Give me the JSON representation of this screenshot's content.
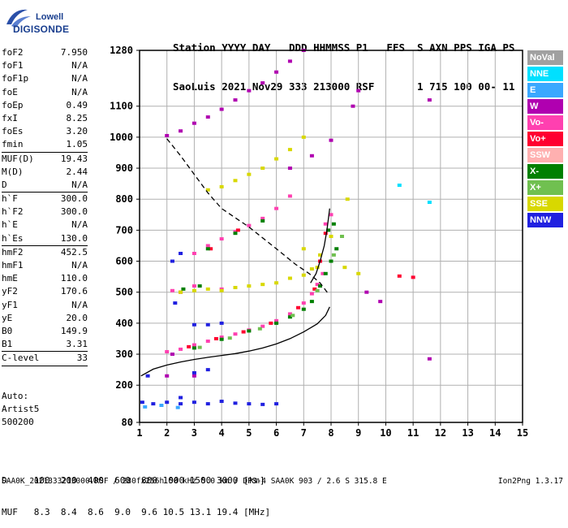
{
  "logo": {
    "line1": "Lowell",
    "line2": "DIGISONDE"
  },
  "header": {
    "line1": "Station YYYY DAY   DDD HHMMSS P1   FFS  S AXN PPS IGA PS",
    "line2": "SaoLuis 2021 Nov29 333 213000 RSF       1 715 100 00- 11"
  },
  "params": [
    {
      "label": "foF2",
      "value": "7.950"
    },
    {
      "label": "foF1",
      "value": "N/A"
    },
    {
      "label": "foF1p",
      "value": "N/A"
    },
    {
      "label": "foE",
      "value": "N/A"
    },
    {
      "label": "foEp",
      "value": "0.49"
    },
    {
      "label": "fxI",
      "value": "8.25"
    },
    {
      "label": "foEs",
      "value": "3.20"
    },
    {
      "label": "fmin",
      "value": "1.05"
    },
    {
      "sep": true
    },
    {
      "label": "MUF(D)",
      "value": "19.43"
    },
    {
      "label": "M(D)",
      "value": "2.44"
    },
    {
      "label": "D",
      "value": "N/A"
    },
    {
      "sep": true
    },
    {
      "label": "h`F",
      "value": "300.0"
    },
    {
      "label": "h`F2",
      "value": "300.0"
    },
    {
      "label": "h`E",
      "value": "N/A"
    },
    {
      "label": "h`Es",
      "value": "130.0"
    },
    {
      "sep": true
    },
    {
      "label": "hmF2",
      "value": "452.5"
    },
    {
      "label": "hmF1",
      "value": "N/A"
    },
    {
      "label": "hmE",
      "value": "110.0"
    },
    {
      "label": "yF2",
      "value": "170.6"
    },
    {
      "label": "yF1",
      "value": "N/A"
    },
    {
      "label": "yE",
      "value": "20.0"
    },
    {
      "label": "B0",
      "value": "149.9"
    },
    {
      "label": "B1",
      "value": "3.31"
    },
    {
      "sep": true
    },
    {
      "label": "C-level",
      "value": "33"
    },
    {
      "sep": true
    }
  ],
  "auto": {
    "line1": "Auto:",
    "line2": "Artist5",
    "line3": "500200"
  },
  "muf_table": {
    "line1": "D     100  200  400  600  800 1000 1500 3000 [km]",
    "line2": "MUF   8.3  8.4  8.6  9.0  9.6 10.5 13.1 19.4 [MHz]"
  },
  "footer": {
    "left": "SAA0K_2021333213000.RSF / 280fx256h 50 kHz 5.0 km / DPS-4 SAA0K 903 / 2.6 S 315.8 E",
    "right": "Ion2Png 1.3.17"
  },
  "legend": [
    {
      "label": "NoVal",
      "color": "#a0a0a0"
    },
    {
      "label": "NNE",
      "color": "#00e0ff"
    },
    {
      "label": "E",
      "color": "#3aa8ff"
    },
    {
      "label": "W",
      "color": "#b000b0"
    },
    {
      "label": "Vo-",
      "color": "#ff40b0"
    },
    {
      "label": "Vo+",
      "color": "#ff0030"
    },
    {
      "label": "SSW",
      "color": "#ffb0b0"
    },
    {
      "label": "X-",
      "color": "#008000"
    },
    {
      "label": "X+",
      "color": "#70c050"
    },
    {
      "label": "SSE",
      "color": "#d8d800"
    },
    {
      "label": "NNW",
      "color": "#2020e0"
    }
  ],
  "chart_data": {
    "type": "scatter",
    "xlim": [
      1,
      15
    ],
    "ylim": [
      80,
      1280
    ],
    "x_ticks": [
      1,
      2,
      3,
      4,
      5,
      6,
      7,
      8,
      9,
      10,
      11,
      12,
      13,
      14,
      15
    ],
    "y_ticks": [
      80,
      200,
      300,
      400,
      500,
      600,
      700,
      800,
      900,
      1000,
      1100,
      1280
    ],
    "grid": true,
    "legend_position": "right",
    "series": [
      {
        "name": "Vo-",
        "color": "#ff40b0",
        "points": [
          [
            2,
            308
          ],
          [
            2.5,
            316
          ],
          [
            3,
            330
          ],
          [
            3.5,
            342
          ],
          [
            4,
            355
          ],
          [
            4.5,
            365
          ],
          [
            5,
            378
          ],
          [
            5.5,
            390
          ],
          [
            6,
            408
          ],
          [
            6.5,
            430
          ],
          [
            7,
            465
          ],
          [
            7.3,
            495
          ],
          [
            7.5,
            525
          ],
          [
            7.7,
            560
          ],
          [
            3,
            625
          ],
          [
            3.5,
            650
          ],
          [
            4,
            672
          ],
          [
            4.5,
            695
          ],
          [
            5,
            715
          ],
          [
            5.5,
            738
          ],
          [
            6,
            770
          ],
          [
            6.5,
            810
          ],
          [
            7.8,
            720
          ],
          [
            8,
            750
          ],
          [
            2.2,
            505
          ],
          [
            3,
            520
          ],
          [
            4,
            510
          ]
        ]
      },
      {
        "name": "Vo+",
        "color": "#ff0030",
        "points": [
          [
            2.8,
            324
          ],
          [
            3.8,
            350
          ],
          [
            4.8,
            372
          ],
          [
            5.8,
            400
          ],
          [
            6.8,
            450
          ],
          [
            7.4,
            510
          ],
          [
            7.6,
            600
          ],
          [
            7.8,
            690
          ],
          [
            2.5,
            500
          ],
          [
            3.6,
            640
          ],
          [
            4.6,
            700
          ],
          [
            10.5,
            552
          ],
          [
            11,
            548
          ]
        ]
      },
      {
        "name": "X-",
        "color": "#008000",
        "points": [
          [
            3,
            320
          ],
          [
            4,
            348
          ],
          [
            5,
            375
          ],
          [
            6,
            400
          ],
          [
            6.5,
            420
          ],
          [
            7,
            445
          ],
          [
            7.3,
            470
          ],
          [
            7.6,
            520
          ],
          [
            7.8,
            560
          ],
          [
            8,
            600
          ],
          [
            8.2,
            640
          ],
          [
            3.5,
            640
          ],
          [
            4.5,
            690
          ],
          [
            5.5,
            730
          ],
          [
            2.6,
            510
          ],
          [
            3.2,
            520
          ],
          [
            7.9,
            700
          ],
          [
            8.1,
            720
          ]
        ]
      },
      {
        "name": "X+",
        "color": "#70c050",
        "points": [
          [
            3.2,
            322
          ],
          [
            4.3,
            352
          ],
          [
            5.4,
            382
          ],
          [
            6.6,
            425
          ],
          [
            7.5,
            505
          ],
          [
            8.1,
            620
          ],
          [
            8.4,
            680
          ]
        ]
      },
      {
        "name": "SSE",
        "color": "#d8d800",
        "points": [
          [
            2.5,
            500
          ],
          [
            3,
            505
          ],
          [
            3.5,
            510
          ],
          [
            4,
            505
          ],
          [
            4.5,
            515
          ],
          [
            5,
            520
          ],
          [
            5.5,
            525
          ],
          [
            6,
            530
          ],
          [
            6.5,
            545
          ],
          [
            7,
            555
          ],
          [
            7.3,
            575
          ],
          [
            7.6,
            620
          ],
          [
            8,
            680
          ],
          [
            8.6,
            800
          ],
          [
            3.5,
            830
          ],
          [
            4,
            840
          ],
          [
            4.5,
            860
          ],
          [
            5,
            880
          ],
          [
            5.5,
            900
          ],
          [
            6,
            930
          ],
          [
            6.5,
            960
          ],
          [
            7,
            1000
          ],
          [
            7,
            640
          ],
          [
            7.5,
            580
          ],
          [
            8.5,
            580
          ],
          [
            9,
            560
          ]
        ]
      },
      {
        "name": "W",
        "color": "#b000b0",
        "points": [
          [
            2.2,
            300
          ],
          [
            3,
            230
          ],
          [
            2,
            230
          ],
          [
            2,
            1005
          ],
          [
            2.5,
            1020
          ],
          [
            3,
            1045
          ],
          [
            3.5,
            1065
          ],
          [
            4,
            1090
          ],
          [
            4.5,
            1120
          ],
          [
            5,
            1150
          ],
          [
            5.5,
            1175
          ],
          [
            6,
            1210
          ],
          [
            6.5,
            1245
          ],
          [
            7,
            1280
          ],
          [
            11.6,
            1120
          ],
          [
            8.8,
            1100
          ],
          [
            9,
            1150
          ],
          [
            6.5,
            900
          ],
          [
            7.3,
            940
          ],
          [
            8,
            990
          ],
          [
            11.6,
            285
          ],
          [
            9.3,
            500
          ],
          [
            9.8,
            470
          ]
        ]
      },
      {
        "name": "NNW",
        "color": "#2020e0",
        "points": [
          [
            1.1,
            145
          ],
          [
            1.5,
            140
          ],
          [
            2,
            145
          ],
          [
            2.5,
            140
          ],
          [
            3,
            145
          ],
          [
            3.5,
            140
          ],
          [
            4,
            148
          ],
          [
            4.5,
            142
          ],
          [
            5,
            140
          ],
          [
            5.5,
            138
          ],
          [
            6,
            140
          ],
          [
            2.5,
            160
          ],
          [
            3,
            240
          ],
          [
            3.5,
            250
          ],
          [
            3,
            395
          ],
          [
            3.5,
            395
          ],
          [
            4,
            400
          ],
          [
            2.5,
            625
          ],
          [
            2.2,
            600
          ],
          [
            2.3,
            465
          ],
          [
            1.3,
            230
          ]
        ]
      },
      {
        "name": "NNE",
        "color": "#00e0ff",
        "points": [
          [
            11.6,
            790
          ],
          [
            10.5,
            845
          ]
        ]
      },
      {
        "name": "E",
        "color": "#3aa8ff",
        "points": [
          [
            1.2,
            130
          ],
          [
            1.8,
            135
          ],
          [
            2.4,
            128
          ]
        ]
      }
    ],
    "lines": [
      {
        "name": "profile",
        "style": "solid",
        "points": [
          [
            1.05,
            230
          ],
          [
            1.5,
            252
          ],
          [
            2,
            265
          ],
          [
            2.5,
            275
          ],
          [
            3,
            283
          ],
          [
            3.5,
            290
          ],
          [
            4,
            296
          ],
          [
            4.5,
            302
          ],
          [
            5,
            310
          ],
          [
            5.5,
            320
          ],
          [
            6,
            333
          ],
          [
            6.5,
            350
          ],
          [
            7,
            372
          ],
          [
            7.5,
            398
          ],
          [
            7.8,
            425
          ],
          [
            7.95,
            452.5
          ]
        ]
      },
      {
        "name": "trace",
        "style": "solid",
        "points": [
          [
            7.25,
            530
          ],
          [
            7.45,
            560
          ],
          [
            7.6,
            600
          ],
          [
            7.75,
            650
          ],
          [
            7.85,
            700
          ],
          [
            7.95,
            770
          ]
        ]
      },
      {
        "name": "muf",
        "style": "dashed",
        "points": [
          [
            2,
            995
          ],
          [
            2.5,
            940
          ],
          [
            3,
            880
          ],
          [
            3.5,
            820
          ],
          [
            4,
            770
          ],
          [
            5,
            710
          ],
          [
            6,
            640
          ],
          [
            6.7,
            590
          ],
          [
            7.2,
            560
          ],
          [
            7.6,
            530
          ],
          [
            7.9,
            495
          ]
        ]
      }
    ]
  }
}
